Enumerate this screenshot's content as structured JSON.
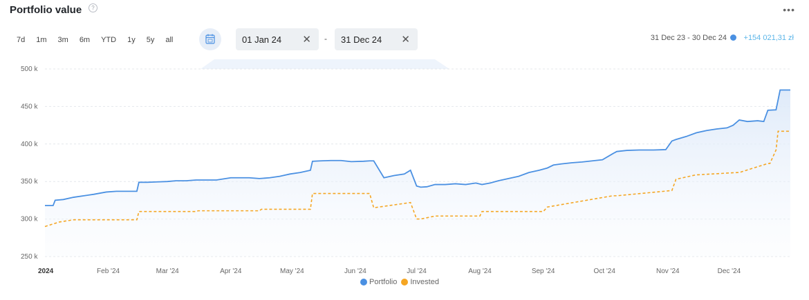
{
  "header": {
    "title": "Portfolio value",
    "help_icon": "question-circle-icon",
    "more_icon": "more-dots-icon"
  },
  "ranges": [
    "7d",
    "1m",
    "3m",
    "6m",
    "YTD",
    "1y",
    "5y",
    "all"
  ],
  "calendar_icon": "calendar-icon",
  "date_from": "01 Jan 24",
  "date_to": "31 Dec 24",
  "date_separator": "-",
  "period_label": "31 Dec 23 - 30 Dec 24",
  "change_label": "+154 021,31 zł",
  "colors": {
    "portfolio": "#4a90e2",
    "invested": "#f5a623",
    "area_top": "#dde9f9",
    "change": "#5bb5e8"
  },
  "chart_data": {
    "type": "line",
    "xlabel": "",
    "ylabel": "",
    "ylim": [
      250000,
      500000
    ],
    "yticks": [
      250000,
      300000,
      350000,
      400000,
      450000,
      500000
    ],
    "ytick_labels": [
      "250 k",
      "300 k",
      "350 k",
      "400 k",
      "450 k",
      "500 k"
    ],
    "xtick_labels": [
      "2024",
      "Feb '24",
      "Mar '24",
      "Apr '24",
      "May '24",
      "Jun '24",
      "Jul '24",
      "Aug '24",
      "Sep '24",
      "Oct '24",
      "Nov '24",
      "Dec '24"
    ],
    "xtick_dates": [
      "2024-01-01",
      "2024-02-01",
      "2024-03-01",
      "2024-04-01",
      "2024-05-01",
      "2024-06-01",
      "2024-07-01",
      "2024-08-01",
      "2024-09-01",
      "2024-10-01",
      "2024-11-01",
      "2024-12-01"
    ],
    "xlim": [
      "2024-01-01",
      "2024-12-31"
    ],
    "grid": true,
    "legend_position": "bottom-center",
    "series": [
      {
        "name": "Portfolio",
        "x": [
          "2024-01-01",
          "2024-01-05",
          "2024-01-06",
          "2024-01-10",
          "2024-01-15",
          "2024-01-20",
          "2024-01-25",
          "2024-01-31",
          "2024-02-05",
          "2024-02-10",
          "2024-02-15",
          "2024-02-16",
          "2024-02-20",
          "2024-02-25",
          "2024-03-01",
          "2024-03-05",
          "2024-03-10",
          "2024-03-15",
          "2024-03-20",
          "2024-03-25",
          "2024-04-01",
          "2024-04-05",
          "2024-04-10",
          "2024-04-15",
          "2024-04-20",
          "2024-04-25",
          "2024-04-30",
          "2024-05-05",
          "2024-05-10",
          "2024-05-11",
          "2024-05-15",
          "2024-05-20",
          "2024-05-25",
          "2024-05-30",
          "2024-06-05",
          "2024-06-08",
          "2024-06-10",
          "2024-06-15",
          "2024-06-20",
          "2024-06-25",
          "2024-06-28",
          "2024-07-01",
          "2024-07-03",
          "2024-07-06",
          "2024-07-10",
          "2024-07-15",
          "2024-07-20",
          "2024-07-25",
          "2024-07-30",
          "2024-08-02",
          "2024-08-06",
          "2024-08-10",
          "2024-08-15",
          "2024-08-20",
          "2024-08-25",
          "2024-08-30",
          "2024-09-03",
          "2024-09-06",
          "2024-09-10",
          "2024-09-15",
          "2024-09-20",
          "2024-09-25",
          "2024-09-30",
          "2024-10-05",
          "2024-10-07",
          "2024-10-12",
          "2024-10-18",
          "2024-10-25",
          "2024-10-31",
          "2024-11-03",
          "2024-11-05",
          "2024-11-10",
          "2024-11-15",
          "2024-11-20",
          "2024-11-25",
          "2024-11-30",
          "2024-12-03",
          "2024-12-06",
          "2024-12-10",
          "2024-12-15",
          "2024-12-18",
          "2024-12-20",
          "2024-12-24",
          "2024-12-26",
          "2024-12-31"
        ],
        "values": [
          318000,
          318000,
          325000,
          326000,
          329000,
          331000,
          333000,
          336000,
          337000,
          337000,
          337000,
          349000,
          349000,
          349500,
          350000,
          351000,
          351000,
          352000,
          352000,
          352000,
          355000,
          355000,
          355000,
          354000,
          355000,
          357000,
          360000,
          362000,
          365000,
          377000,
          377500,
          378000,
          378000,
          376500,
          377000,
          377500,
          377500,
          355000,
          358000,
          360000,
          365000,
          344000,
          342500,
          343000,
          346000,
          346000,
          347000,
          346000,
          348000,
          346000,
          348000,
          351000,
          354000,
          357000,
          362000,
          365000,
          368000,
          372000,
          373500,
          375000,
          376000,
          377500,
          379000,
          387000,
          390000,
          391500,
          392000,
          392000,
          392500,
          404000,
          406000,
          410000,
          415000,
          418000,
          420000,
          421500,
          425000,
          432000,
          430000,
          431000,
          430000,
          445000,
          445500,
          472000,
          472000
        ]
      },
      {
        "name": "Invested",
        "x": [
          "2024-01-01",
          "2024-01-08",
          "2024-01-15",
          "2024-02-15",
          "2024-02-16",
          "2024-03-15",
          "2024-03-16",
          "2024-04-15",
          "2024-04-16",
          "2024-05-10",
          "2024-05-11",
          "2024-06-08",
          "2024-06-10",
          "2024-06-28",
          "2024-07-01",
          "2024-07-03",
          "2024-07-10",
          "2024-08-01",
          "2024-08-02",
          "2024-09-01",
          "2024-09-03",
          "2024-10-05",
          "2024-10-07",
          "2024-11-03",
          "2024-11-05",
          "2024-11-15",
          "2024-11-16",
          "2024-12-05",
          "2024-12-06",
          "2024-12-20",
          "2024-12-21",
          "2024-12-24",
          "2024-12-25",
          "2024-12-31"
        ],
        "values": [
          290000,
          296000,
          299000,
          299000,
          310000,
          310000,
          311000,
          311000,
          313000,
          313000,
          334000,
          334000,
          315000,
          322000,
          300000,
          300000,
          304000,
          304000,
          310000,
          310000,
          316000,
          331000,
          331000,
          338000,
          353000,
          359000,
          359000,
          362000,
          362000,
          374000,
          374000,
          392000,
          417000,
          417000
        ]
      }
    ]
  }
}
